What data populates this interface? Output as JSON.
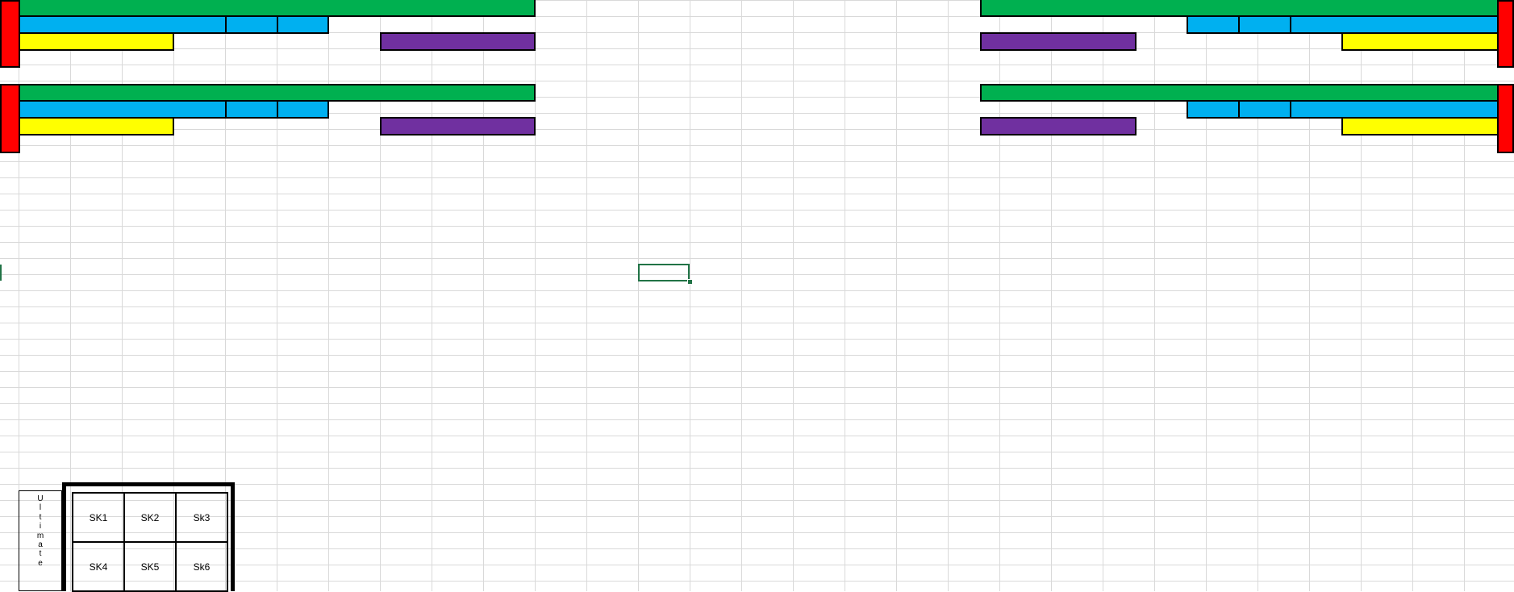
{
  "sheet": {
    "active_cell": "selected cell",
    "gridline_color": "#d9d9d9"
  },
  "colors": {
    "red": "#ff0000",
    "green": "#00b050",
    "blue": "#00b0f0",
    "yellow": "#ffff00",
    "purple": "#7030a0",
    "selection": "#217346"
  },
  "ultimate": {
    "letters": [
      "U",
      "l",
      "t",
      "i",
      "m",
      "a",
      "t",
      "e"
    ]
  },
  "skills": [
    "SK1",
    "SK2",
    "Sk3",
    "SK4",
    "SK5",
    "Sk6"
  ]
}
